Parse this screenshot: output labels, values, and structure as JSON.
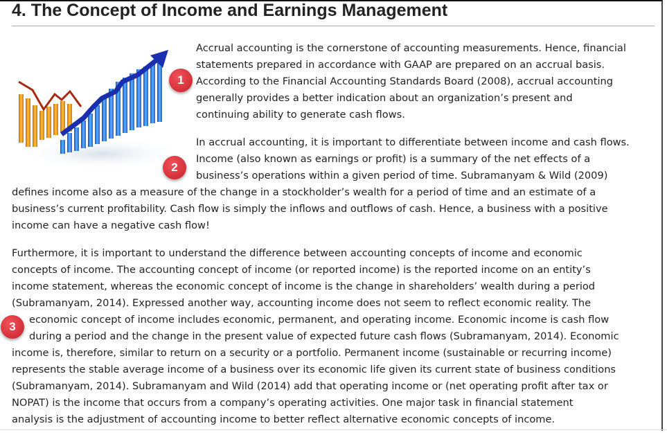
{
  "title": "4. The Concept of Income and Earnings Management",
  "paragraphs": [
    {
      "lines": [
        "Accrual accounting is the cornerstone of accounting measurements. Hence, financial",
        "statements prepared in accordance with GAAP are prepared on an accrual basis.",
        "According to the Financial Accounting Standards Board (2008), accrual accounting",
        "generally provides a better indication about an organization’s present and",
        "continuing ability to generate cash flows."
      ]
    },
    {
      "lines": [
        "In accrual accounting, it is important to differentiate between income and cash flows.",
        "Income (also known as earnings or profit) is a summary of the net effects of a",
        "business’s operations within a given period of time. Subramanyam & Wild (2009)",
        "defines income also as a measure of the change in a stockholder’s wealth for a period of time and an estimate of a",
        "business’s current profitability. Cash flow is simply the inflows and outflows of cash. Hence, a business with a positive",
        "income can have a negative cash flow!"
      ]
    },
    {
      "lines": [
        "Furthermore, it is important to understand the difference between accounting concepts of income and economic",
        "concepts of income. The accounting concept of income (or reported income) is the reported income on an entity’s",
        "income statement, whereas the economic concept of income is the change in shareholders’ wealth during a period",
        "(Subramanyam, 2014). Expressed another way, accounting income does not seem to reflect economic reality.  The",
        "economic concept of income includes economic, permanent, and operating income. Economic income is cash flow",
        "during a period and the change in the present value of expected future cash flows (Subramanyam, 2014). Economic",
        "income is, therefore, similar to return on a security or a portfolio.  Permanent income (sustainable or recurring income)",
        "represents the stable average income of a business over its economic life given its current state of business conditions",
        "(Subramanyam, 2014). Subramanyam and Wild (2014) add that operating income or (net operating profit after tax or",
        "NOPAT) is the income that occurs from a company’s operating activities.  One major task in financial statement",
        "analysis is the adjustment of accounting income to better reflect alternative economic concepts of income."
      ]
    }
  ],
  "badges": [
    "1",
    "2",
    "3"
  ],
  "colors": {
    "badge": "#d9303a",
    "orange_bars": "#f0a020",
    "blue_bars": "#2f86e8",
    "arrow": "#1a2fb0"
  }
}
